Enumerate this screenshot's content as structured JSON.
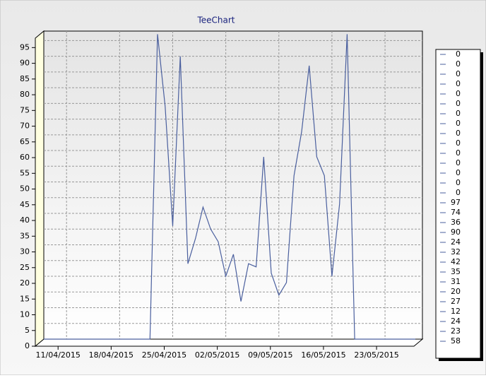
{
  "chart_data": {
    "type": "line",
    "title": "TeeChart",
    "x": [
      "08/04/2015",
      "09/04/2015",
      "10/04/2015",
      "11/04/2015",
      "12/04/2015",
      "13/04/2015",
      "14/04/2015",
      "15/04/2015",
      "16/04/2015",
      "17/04/2015",
      "18/04/2015",
      "19/04/2015",
      "20/04/2015",
      "21/04/2015",
      "22/04/2015",
      "23/04/2015",
      "24/04/2015",
      "25/04/2015",
      "26/04/2015",
      "27/04/2015",
      "28/04/2015",
      "29/04/2015",
      "30/04/2015",
      "01/05/2015",
      "02/05/2015",
      "03/05/2015",
      "04/05/2015",
      "05/05/2015",
      "06/05/2015",
      "07/05/2015",
      "08/05/2015",
      "09/05/2015",
      "10/05/2015",
      "11/05/2015",
      "12/05/2015",
      "13/05/2015",
      "14/05/2015",
      "15/05/2015",
      "16/05/2015",
      "17/05/2015",
      "18/05/2015",
      "19/05/2015",
      "20/05/2015",
      "21/05/2015",
      "22/05/2015",
      "23/05/2015",
      "24/05/2015",
      "25/05/2015",
      "26/05/2015",
      "27/05/2015"
    ],
    "values": [
      0,
      0,
      0,
      0,
      0,
      0,
      0,
      0,
      0,
      0,
      0,
      0,
      0,
      0,
      0,
      97,
      74,
      36,
      90,
      24,
      32,
      42,
      35,
      31,
      20,
      27,
      12,
      24,
      23,
      58,
      21,
      14,
      18,
      52,
      66,
      87,
      58,
      52,
      20,
      43,
      97,
      0,
      0,
      0,
      0,
      0,
      0,
      0,
      0,
      0
    ],
    "color": "#4a5f9e",
    "xlim": [
      "08/04/2015",
      "27/05/2015"
    ],
    "xticks": [
      "11/04/2015",
      "18/04/2015",
      "25/04/2015",
      "02/05/2015",
      "09/05/2015",
      "16/05/2015",
      "23/05/2015"
    ],
    "ylim": [
      0,
      98
    ],
    "yticks": [
      0,
      5,
      10,
      15,
      20,
      25,
      30,
      35,
      40,
      45,
      50,
      55,
      60,
      65,
      70,
      75,
      80,
      85,
      90,
      95
    ],
    "grid": true
  }
}
